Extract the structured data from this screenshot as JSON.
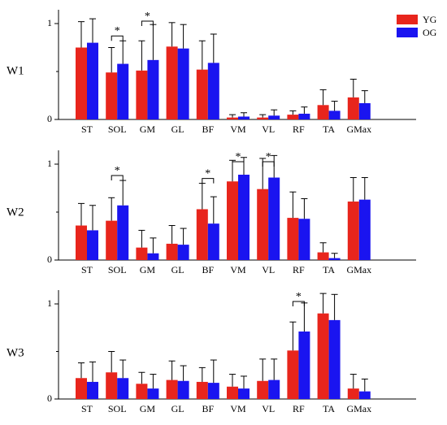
{
  "chart_data": [
    {
      "type": "bar",
      "panel_label": "W1",
      "categories": [
        "ST",
        "SOL",
        "GM",
        "GL",
        "BF",
        "VM",
        "VL",
        "RF",
        "TA",
        "GMax"
      ],
      "series": [
        {
          "name": "YG",
          "color": "#e8251c",
          "values": [
            0.75,
            0.49,
            0.51,
            0.76,
            0.52,
            0.02,
            0.02,
            0.05,
            0.15,
            0.23
          ],
          "errors": [
            0.27,
            0.26,
            0.31,
            0.25,
            0.3,
            0.03,
            0.03,
            0.04,
            0.16,
            0.19
          ]
        },
        {
          "name": "OG",
          "color": "#1a14f0",
          "values": [
            0.8,
            0.58,
            0.62,
            0.74,
            0.59,
            0.03,
            0.04,
            0.06,
            0.09,
            0.17
          ],
          "errors": [
            0.25,
            0.24,
            0.37,
            0.25,
            0.3,
            0.04,
            0.06,
            0.07,
            0.1,
            0.13
          ]
        }
      ],
      "significance": [
        {
          "category": "SOL",
          "label": "*"
        },
        {
          "category": "GM",
          "label": "*"
        }
      ],
      "ylim": [
        0,
        1.1
      ],
      "yticks": [
        "0",
        "1"
      ]
    },
    {
      "type": "bar",
      "panel_label": "W2",
      "categories": [
        "ST",
        "SOL",
        "GM",
        "GL",
        "BF",
        "VM",
        "VL",
        "RF",
        "TA",
        "GMax"
      ],
      "series": [
        {
          "name": "YG",
          "color": "#e8251c",
          "values": [
            0.36,
            0.41,
            0.13,
            0.17,
            0.53,
            0.82,
            0.74,
            0.44,
            0.08,
            0.61
          ],
          "errors": [
            0.23,
            0.24,
            0.18,
            0.19,
            0.27,
            0.22,
            0.32,
            0.27,
            0.1,
            0.25
          ]
        },
        {
          "name": "OG",
          "color": "#1a14f0",
          "values": [
            0.31,
            0.57,
            0.07,
            0.16,
            0.38,
            0.89,
            0.86,
            0.43,
            0.02,
            0.63
          ],
          "errors": [
            0.26,
            0.26,
            0.16,
            0.17,
            0.28,
            0.18,
            0.23,
            0.21,
            0.05,
            0.23
          ]
        }
      ],
      "significance": [
        {
          "category": "SOL",
          "label": "*"
        },
        {
          "category": "BF",
          "label": "*"
        },
        {
          "category": "VM",
          "label": "*"
        },
        {
          "category": "VL",
          "label": "*"
        }
      ],
      "ylim": [
        0,
        1.1
      ],
      "yticks": [
        "0",
        "1"
      ]
    },
    {
      "type": "bar",
      "panel_label": "W3",
      "categories": [
        "ST",
        "SOL",
        "GM",
        "GL",
        "BF",
        "VM",
        "VL",
        "RF",
        "TA",
        "GMax"
      ],
      "series": [
        {
          "name": "YG",
          "color": "#e8251c",
          "values": [
            0.22,
            0.28,
            0.16,
            0.2,
            0.18,
            0.13,
            0.19,
            0.51,
            0.9,
            0.11
          ],
          "errors": [
            0.16,
            0.22,
            0.12,
            0.2,
            0.15,
            0.13,
            0.23,
            0.3,
            0.21,
            0.15
          ]
        },
        {
          "name": "OG",
          "color": "#1a14f0",
          "values": [
            0.18,
            0.22,
            0.11,
            0.19,
            0.17,
            0.11,
            0.2,
            0.71,
            0.83,
            0.08
          ],
          "errors": [
            0.21,
            0.19,
            0.15,
            0.16,
            0.24,
            0.13,
            0.22,
            0.3,
            0.27,
            0.13
          ]
        }
      ],
      "significance": [
        {
          "category": "RF",
          "label": "*"
        }
      ],
      "ylim": [
        0,
        1.1
      ],
      "yticks": [
        "0",
        "1"
      ]
    }
  ],
  "legend": {
    "placement": "top-right",
    "items": [
      {
        "label": "YG",
        "color": "#e8251c"
      },
      {
        "label": "OG",
        "color": "#1a14f0"
      }
    ]
  }
}
